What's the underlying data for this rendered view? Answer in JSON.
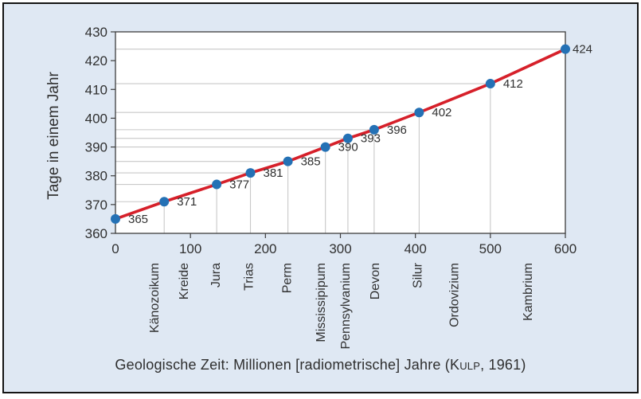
{
  "figure": {
    "background_color": "#dfe8f3",
    "border_color": "#141414"
  },
  "caption": {
    "prefix": "Geologische Zeit: Millionen [radiometrische] Jahre (",
    "author": "Kulp",
    "suffix": ", 1961)"
  },
  "chart_data": {
    "type": "line",
    "title": "",
    "ylabel": "Tage in einem Jahr",
    "xlabel": "Geologische Zeit: Millionen [radiometrische] Jahre (Kulp, 1961)",
    "x": [
      0,
      65,
      135,
      180,
      230,
      280,
      310,
      345,
      405,
      500,
      600
    ],
    "y": [
      365,
      371,
      377,
      381,
      385,
      390,
      393,
      396,
      402,
      412,
      424
    ],
    "point_labels": [
      "365",
      "371",
      "377",
      "381",
      "385",
      "390",
      "393",
      "396",
      "402",
      "412",
      "424"
    ],
    "xlim": [
      0,
      600
    ],
    "ylim": [
      360,
      430
    ],
    "x_ticks": [
      0,
      100,
      200,
      300,
      400,
      500,
      600
    ],
    "y_ticks": [
      360,
      370,
      380,
      390,
      400,
      410,
      420,
      430
    ],
    "periods": [
      {
        "label": "Känozoikum",
        "x": 51
      },
      {
        "label": "Kreide",
        "x": 90
      },
      {
        "label": "Jura",
        "x": 133
      },
      {
        "label": "Trias",
        "x": 177
      },
      {
        "label": "Perm",
        "x": 228
      },
      {
        "label": "Mississipipum",
        "x": 273
      },
      {
        "label": "Pennsylvanium",
        "x": 306
      },
      {
        "label": "Devon",
        "x": 345
      },
      {
        "label": "Silur",
        "x": 402
      },
      {
        "label": "Ordovizium",
        "x": 451
      },
      {
        "label": "Kambrium",
        "x": 549
      }
    ],
    "grid": "L-shaped leader lines from each data point to both axes",
    "legend_position": "none",
    "colors": {
      "line": "#d6202a",
      "point": "#2471b5",
      "leader": "#c8c8c8",
      "axis": "#3d3d3d",
      "text": "#303030"
    }
  }
}
